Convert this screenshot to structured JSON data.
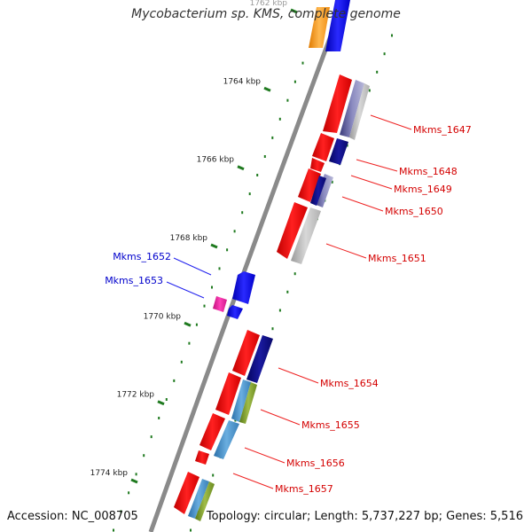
{
  "title": "Mycobacterium sp. KMS, complete genome",
  "accession": "Accession: NC_008705",
  "topology": "Topology: circular; Length: 5,737,227 bp; Genes: 5,516",
  "axis_labels": [
    {
      "text": "1762 kbp",
      "kb": 1762
    },
    {
      "text": "1764 kbp",
      "kb": 1764
    },
    {
      "text": "1766 kbp",
      "kb": 1766
    },
    {
      "text": "1768 kbp",
      "kb": 1768
    },
    {
      "text": "1770 kbp",
      "kb": 1770
    },
    {
      "text": "1772 kbp",
      "kb": 1772
    },
    {
      "text": "1774 kbp",
      "kb": 1774
    }
  ],
  "gene_labels": [
    {
      "text": "Mkms_1647",
      "strand": "+",
      "color": "#d40000"
    },
    {
      "text": "Mkms_1648",
      "strand": "+",
      "color": "#d40000"
    },
    {
      "text": "Mkms_1649",
      "strand": "+",
      "color": "#d40000"
    },
    {
      "text": "Mkms_1650",
      "strand": "+",
      "color": "#d40000"
    },
    {
      "text": "Mkms_1651",
      "strand": "+",
      "color": "#d40000"
    },
    {
      "text": "Mkms_1652",
      "strand": "-",
      "color": "#0000cc"
    },
    {
      "text": "Mkms_1653",
      "strand": "-",
      "color": "#0000cc"
    },
    {
      "text": "Mkms_1654",
      "strand": "+",
      "color": "#d40000"
    },
    {
      "text": "Mkms_1655",
      "strand": "+",
      "color": "#d40000"
    },
    {
      "text": "Mkms_1656",
      "strand": "+",
      "color": "#d40000"
    },
    {
      "text": "Mkms_1657",
      "strand": "+",
      "color": "#d40000"
    }
  ],
  "colors": {
    "backbone": "#8a8a8a",
    "tick": "#1f7a1f",
    "forward_gene": "#ee1111",
    "reverse_gene": "#1111ee",
    "navy_feature": "#0b0b80",
    "slate_feature": "#6a6aa8",
    "steel_feature": "#4a90c8",
    "olive_feature": "#7d9a2a",
    "gray_feature": "#b0b0b0",
    "orange_feature": "#f39a1a",
    "magenta_feature": "#e8199a"
  }
}
